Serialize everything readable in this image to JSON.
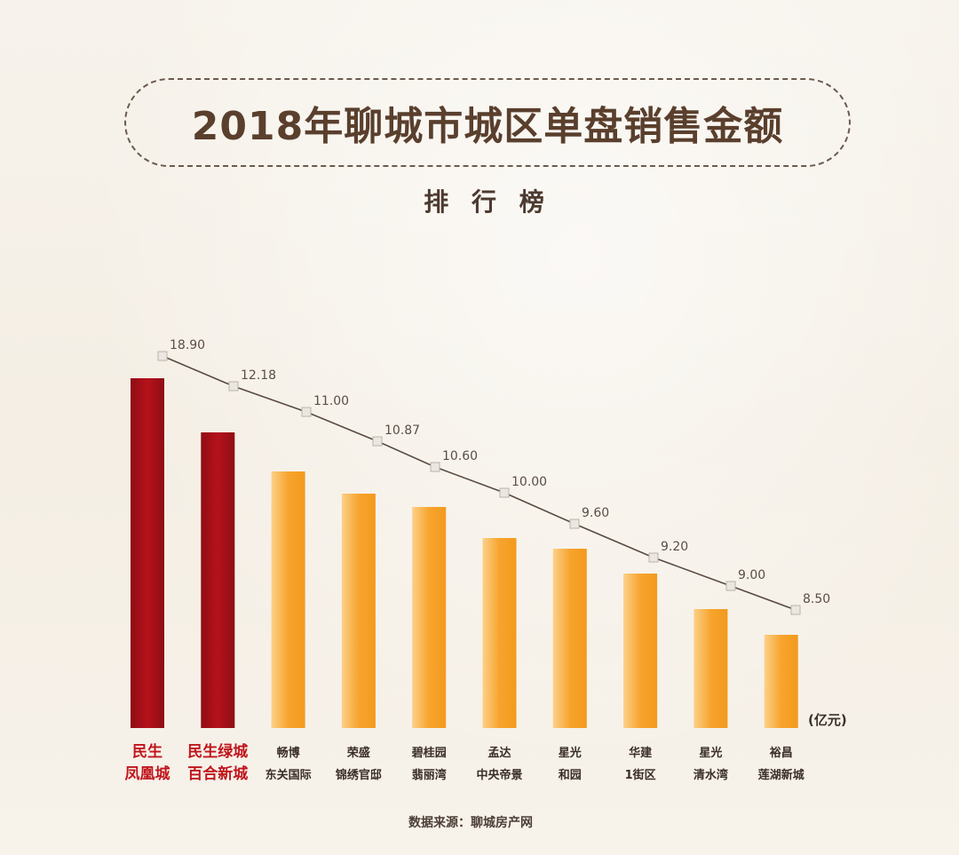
{
  "title": "2018年聊城市城区单盘销售金额",
  "subtitle": "排 行 榜",
  "unit_label": "(亿元)",
  "source": "数据来源：聊城房产网",
  "colors": {
    "highlight_bar": "#b5121b",
    "normal_bar": "#f7a42d",
    "highlight_label": "#c0151c",
    "normal_label": "#3a2e28",
    "trend_line": "#5a4a42"
  },
  "chart_data": {
    "type": "bar",
    "categories": [
      [
        "民生",
        "凤凰城"
      ],
      [
        "民生绿城",
        "百合新城"
      ],
      [
        "畅博",
        "东关国际"
      ],
      [
        "荣盛",
        "锦绣官邸"
      ],
      [
        "碧桂园",
        "翡丽湾"
      ],
      [
        "孟达",
        "中央帝景"
      ],
      [
        "星光",
        "和园"
      ],
      [
        "华建",
        "1街区"
      ],
      [
        "星光",
        "清水湾"
      ],
      [
        "裕昌",
        "莲湖新城"
      ]
    ],
    "values": [
      18.9,
      12.18,
      11.0,
      10.87,
      10.6,
      10.0,
      9.6,
      9.2,
      9.0,
      8.5
    ],
    "value_labels": [
      "18.90",
      "12.18",
      "11.00",
      "10.87",
      "10.60",
      "10.00",
      "9.60",
      "9.20",
      "9.00",
      "8.50"
    ],
    "highlighted": [
      true,
      true,
      false,
      false,
      false,
      false,
      false,
      false,
      false,
      false
    ],
    "trend_line": true,
    "grid": false
  }
}
